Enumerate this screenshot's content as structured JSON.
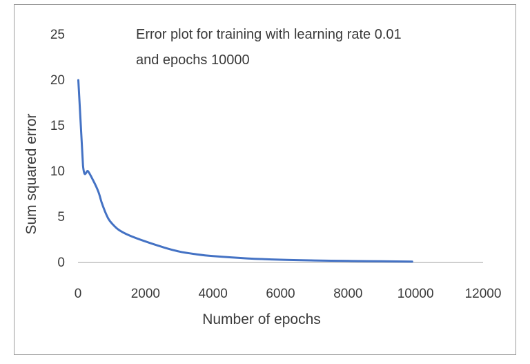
{
  "chart_data": {
    "type": "line",
    "title_lines": [
      "Error plot for training with learning rate 0.01",
      "and epochs 10000"
    ],
    "xlabel": "Number of epochs",
    "ylabel": "Sum squared error",
    "xlim": [
      0,
      12000
    ],
    "ylim": [
      0,
      25
    ],
    "xticks": [
      0,
      2000,
      4000,
      6000,
      8000,
      10000,
      12000
    ],
    "yticks": [
      0,
      5,
      10,
      15,
      20,
      25
    ],
    "grid": false,
    "legend": "none",
    "line_color": "#4472c4",
    "series": [
      {
        "x": [
          10,
          150,
          300,
          450,
          600,
          700,
          800,
          900,
          1000,
          1200,
          1500,
          2000,
          2500,
          3000,
          3500,
          4000,
          5000,
          6000,
          7000,
          8000,
          9000,
          9900
        ],
        "y": [
          20.0,
          10.6,
          10.0,
          9.0,
          7.8,
          6.6,
          5.6,
          4.8,
          4.3,
          3.6,
          3.0,
          2.3,
          1.7,
          1.2,
          0.9,
          0.7,
          0.45,
          0.3,
          0.22,
          0.17,
          0.13,
          0.1
        ]
      }
    ]
  }
}
